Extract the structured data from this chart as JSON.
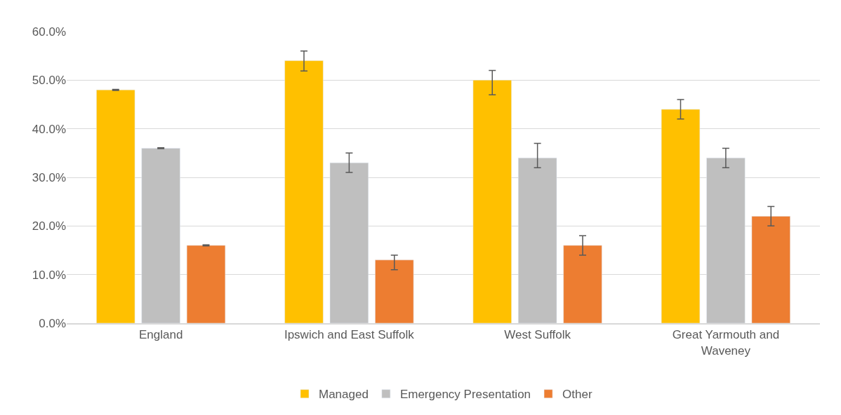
{
  "chart_data": {
    "type": "bar",
    "categories": [
      "England",
      "Ipswich and East Suffolk",
      "West Suffolk",
      "Great Yarmouth and Waveney"
    ],
    "series": [
      {
        "name": "Managed",
        "color": "#ffc000",
        "values": [
          48,
          54,
          50,
          44
        ],
        "errors": [
          0.1,
          [
            51.9,
            56
          ],
          [
            47,
            52
          ],
          [
            42,
            46
          ]
        ]
      },
      {
        "name": "Emergency Presentation",
        "color": "#bfbfbf",
        "values": [
          36,
          33,
          34,
          34
        ],
        "errors": [
          0.1,
          [
            31,
            35
          ],
          [
            32,
            37
          ],
          [
            32,
            36
          ]
        ]
      },
      {
        "name": "Other",
        "color": "#ed7d31",
        "values": [
          16,
          13,
          16,
          22
        ],
        "errors": [
          0.1,
          [
            11,
            14
          ],
          [
            14,
            18
          ],
          [
            20,
            24
          ]
        ]
      }
    ],
    "ylim": [
      0,
      60
    ],
    "yticks": [
      {
        "value": 0,
        "label": "0.0%"
      },
      {
        "value": 10,
        "label": "10.0%"
      },
      {
        "value": 20,
        "label": "20.0%"
      },
      {
        "value": 30,
        "label": "30.0%"
      },
      {
        "value": 40,
        "label": "40.0%"
      },
      {
        "value": 50,
        "label": "50.0%"
      },
      {
        "value": 60,
        "label": "60.0%"
      }
    ],
    "grid": "y",
    "legend": "bottom"
  }
}
